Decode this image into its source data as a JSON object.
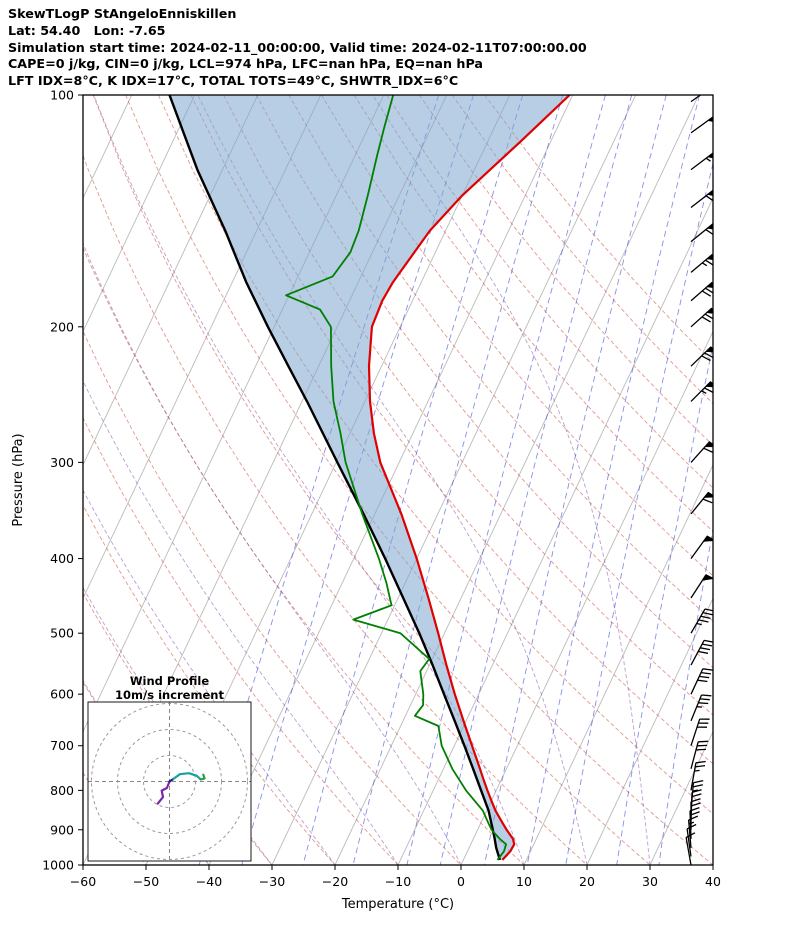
{
  "header": {
    "line1": "SkewTLogP StAngeloEnniskillen",
    "line2": "Lat: 54.40   Lon: -7.65",
    "line3": "Simulation start time: 2024-02-11_00:00:00, Valid time: 2024-02-11T07:00:00.00",
    "line4": "CAPE=0 j/kg, CIN=0 j/kg, LCL=974 hPa, LFC=nan hPa, EQ=nan hPa",
    "line5": "LFT IDX=8°C, K IDX=17°C, TOTAL TOTS=49°C, SHWTR_IDX=6°C"
  },
  "chart_data": {
    "type": "skewt-logp",
    "xlabel": "Temperature (°C)",
    "ylabel": "Pressure (hPa)",
    "xlim": [
      -60,
      40
    ],
    "plim": [
      100,
      1000
    ],
    "x_ticks": [
      -60,
      -50,
      -40,
      -30,
      -20,
      -10,
      0,
      10,
      20,
      30,
      40
    ],
    "y_ticks": [
      100,
      200,
      300,
      400,
      500,
      600,
      700,
      800,
      900,
      1000
    ],
    "skew_rotation_deg": 30,
    "isotherms_c": {
      "min": -160,
      "max": 40,
      "step": 10
    },
    "dry_adiabats_theta_c": {
      "min": -60,
      "max": 150,
      "step": 10
    },
    "moist_adiabats_t0_c": {
      "min": -40,
      "max": 30,
      "step": 10
    },
    "mixing_ratios_gkg": [
      0.1,
      0.2,
      0.5,
      1,
      2,
      3,
      5,
      8,
      12,
      20,
      30
    ],
    "colors": {
      "temperature": "#e00000",
      "dewpoint": "#008000",
      "parcel": "#000000",
      "cape_fill": "rgba(125,165,205,0.55)",
      "isotherm": "#bbbbbb",
      "dry_adiabat": "rgba(200,70,50,0.55)",
      "moist_adiabat": "rgba(135,80,170,0.55)",
      "mixing_ratio": "rgba(55,70,215,0.6)",
      "barb": "#000000",
      "frame": "#000000"
    },
    "temperature_profile_pT": [
      [
        985,
        6.2
      ],
      [
        960,
        6.8
      ],
      [
        940,
        6.9
      ],
      [
        925,
        6.3
      ],
      [
        900,
        4.6
      ],
      [
        875,
        3.0
      ],
      [
        850,
        1.4
      ],
      [
        825,
        0.0
      ],
      [
        800,
        -1.4
      ],
      [
        775,
        -2.8
      ],
      [
        750,
        -4.2
      ],
      [
        700,
        -7.2
      ],
      [
        650,
        -10.4
      ],
      [
        600,
        -13.8
      ],
      [
        550,
        -17.3
      ],
      [
        500,
        -21.0
      ],
      [
        450,
        -25.2
      ],
      [
        400,
        -30.0
      ],
      [
        350,
        -35.8
      ],
      [
        300,
        -43.0
      ],
      [
        275,
        -46.2
      ],
      [
        250,
        -49.2
      ],
      [
        225,
        -52.0
      ],
      [
        200,
        -54.5
      ],
      [
        185,
        -54.8
      ],
      [
        175,
        -54.5
      ],
      [
        150,
        -52.5
      ],
      [
        135,
        -50.0
      ],
      [
        125,
        -47.5
      ],
      [
        115,
        -44.8
      ],
      [
        100,
        -40.5
      ]
    ],
    "dewpoint_profile_pT": [
      [
        985,
        5.4
      ],
      [
        960,
        5.8
      ],
      [
        940,
        5.6
      ],
      [
        925,
        4.2
      ],
      [
        900,
        2.2
      ],
      [
        875,
        0.8
      ],
      [
        850,
        -0.6
      ],
      [
        800,
        -4.8
      ],
      [
        750,
        -8.6
      ],
      [
        700,
        -12.0
      ],
      [
        660,
        -14.0
      ],
      [
        640,
        -18.5
      ],
      [
        620,
        -18.0
      ],
      [
        600,
        -18.8
      ],
      [
        560,
        -21.0
      ],
      [
        540,
        -20.5
      ],
      [
        500,
        -27.0
      ],
      [
        480,
        -35.5
      ],
      [
        460,
        -30.5
      ],
      [
        430,
        -33.0
      ],
      [
        400,
        -36.0
      ],
      [
        350,
        -42.0
      ],
      [
        300,
        -48.5
      ],
      [
        275,
        -51.5
      ],
      [
        250,
        -55.0
      ],
      [
        225,
        -58.0
      ],
      [
        200,
        -61.0
      ],
      [
        190,
        -64.0
      ],
      [
        182,
        -70.5
      ],
      [
        172,
        -64.5
      ],
      [
        160,
        -63.5
      ],
      [
        150,
        -63.8
      ],
      [
        135,
        -65.0
      ],
      [
        120,
        -66.5
      ],
      [
        110,
        -67.5
      ],
      [
        100,
        -68.5
      ]
    ],
    "parcel_profile_pT": [
      [
        985,
        5.8
      ],
      [
        950,
        4.3
      ],
      [
        925,
        3.4
      ],
      [
        900,
        2.4
      ],
      [
        850,
        0.3
      ],
      [
        800,
        -2.4
      ],
      [
        750,
        -5.3
      ],
      [
        700,
        -8.4
      ],
      [
        650,
        -11.8
      ],
      [
        600,
        -15.5
      ],
      [
        550,
        -19.5
      ],
      [
        500,
        -24.0
      ],
      [
        450,
        -29.2
      ],
      [
        400,
        -35.0
      ],
      [
        350,
        -41.8
      ],
      [
        300,
        -49.8
      ],
      [
        250,
        -59.2
      ],
      [
        225,
        -64.8
      ],
      [
        200,
        -71.0
      ],
      [
        175,
        -77.8
      ],
      [
        150,
        -85.0
      ],
      [
        125,
        -94.0
      ],
      [
        100,
        -104.0
      ]
    ],
    "wind_barbs_p_dir_kt": [
      [
        1000,
        170,
        10
      ],
      [
        975,
        172,
        12
      ],
      [
        950,
        175,
        15
      ],
      [
        925,
        178,
        18
      ],
      [
        900,
        180,
        20
      ],
      [
        875,
        182,
        22
      ],
      [
        850,
        185,
        25
      ],
      [
        800,
        190,
        25
      ],
      [
        750,
        195,
        30
      ],
      [
        700,
        198,
        32
      ],
      [
        650,
        202,
        35
      ],
      [
        600,
        205,
        38
      ],
      [
        550,
        208,
        40
      ],
      [
        500,
        210,
        45
      ],
      [
        450,
        213,
        48
      ],
      [
        400,
        216,
        52
      ],
      [
        350,
        219,
        58
      ],
      [
        300,
        222,
        62
      ],
      [
        250,
        225,
        65
      ],
      [
        225,
        226,
        68
      ],
      [
        200,
        228,
        70
      ],
      [
        185,
        229,
        68
      ],
      [
        170,
        230,
        65
      ],
      [
        155,
        231,
        62
      ],
      [
        140,
        232,
        58
      ],
      [
        125,
        233,
        55
      ],
      [
        112,
        234,
        52
      ],
      [
        102,
        235,
        50
      ]
    ],
    "hodograph": {
      "title": "Wind Profile",
      "subtitle": "10m/s increment",
      "ring_interval_ms": 10,
      "rings_ms": [
        10,
        20,
        30
      ],
      "trace_segments": [
        {
          "color": "#7d26a8",
          "points_uv": [
            [
              -4.5,
              -8.5
            ],
            [
              -2.5,
              -6.0
            ],
            [
              -3.0,
              -3.5
            ],
            [
              -1.0,
              -2.5
            ],
            [
              0,
              0
            ]
          ]
        },
        {
          "color": "#1b1b8a",
          "points_uv": [
            [
              0,
              0
            ],
            [
              1.5,
              1.0
            ]
          ]
        },
        {
          "color": "#17a2a2",
          "points_uv": [
            [
              1.5,
              1.0
            ],
            [
              4.0,
              2.8
            ],
            [
              7.5,
              3.2
            ],
            [
              10.5,
              2.2
            ],
            [
              12.0,
              0.8
            ]
          ]
        },
        {
          "color": "#2f9e44",
          "points_uv": [
            [
              12.0,
              0.8
            ],
            [
              13.5,
              1.2
            ],
            [
              13.0,
              2.6
            ]
          ]
        }
      ]
    }
  }
}
